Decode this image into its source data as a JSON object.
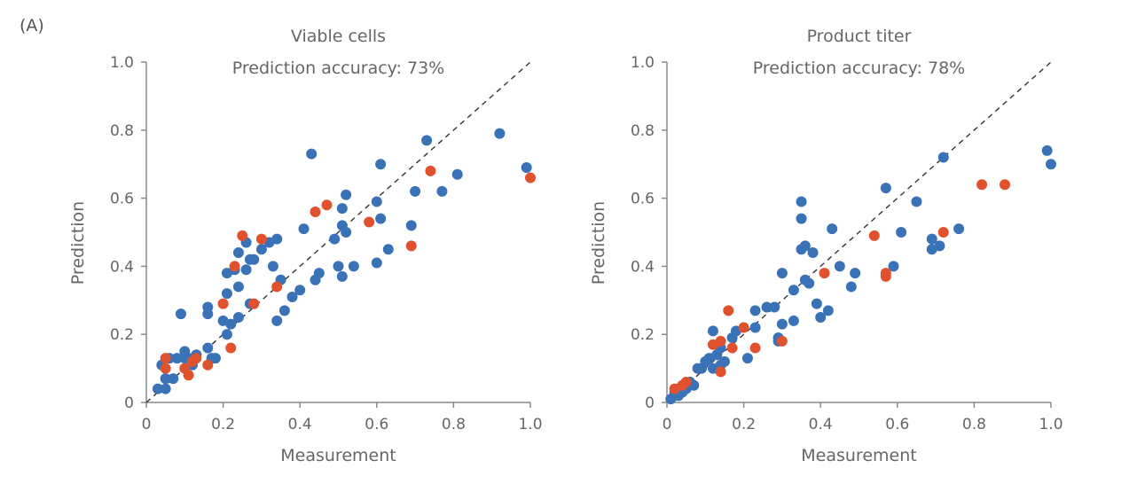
{
  "figure": {
    "panel_label": "(A)"
  },
  "colors": {
    "blue": "#3a72b8",
    "red": "#e0522d",
    "axis": "#888888",
    "text": "#666666"
  },
  "chart_data": [
    {
      "type": "scatter",
      "title": "Viable cells",
      "subtitle": "Prediction accuracy: 73%",
      "xlabel": "Measurement",
      "ylabel": "Prediction",
      "xlim": [
        0,
        1.0
      ],
      "ylim": [
        0,
        1.0
      ],
      "xticks": [
        "0",
        "0.2",
        "0.4",
        "0.6",
        "0.8",
        "1.0"
      ],
      "yticks": [
        "0",
        "0.2",
        "0.4",
        "0.6",
        "0.8",
        "1.0"
      ],
      "grid": false,
      "reference_line": "diagonal",
      "series": [
        {
          "color": "blue",
          "points": [
            [
              0.03,
              0.04
            ],
            [
              0.04,
              0.11
            ],
            [
              0.05,
              0.04
            ],
            [
              0.05,
              0.07
            ],
            [
              0.06,
              0.13
            ],
            [
              0.07,
              0.07
            ],
            [
              0.08,
              0.13
            ],
            [
              0.1,
              0.13
            ],
            [
              0.1,
              0.15
            ],
            [
              0.11,
              0.13
            ],
            [
              0.12,
              0.11
            ],
            [
              0.13,
              0.14
            ],
            [
              0.09,
              0.26
            ],
            [
              0.16,
              0.26
            ],
            [
              0.16,
              0.28
            ],
            [
              0.16,
              0.16
            ],
            [
              0.17,
              0.13
            ],
            [
              0.18,
              0.13
            ],
            [
              0.2,
              0.24
            ],
            [
              0.21,
              0.2
            ],
            [
              0.21,
              0.32
            ],
            [
              0.22,
              0.23
            ],
            [
              0.21,
              0.38
            ],
            [
              0.23,
              0.39
            ],
            [
              0.24,
              0.44
            ],
            [
              0.24,
              0.34
            ],
            [
              0.24,
              0.25
            ],
            [
              0.26,
              0.39
            ],
            [
              0.26,
              0.47
            ],
            [
              0.27,
              0.42
            ],
            [
              0.27,
              0.29
            ],
            [
              0.28,
              0.42
            ],
            [
              0.3,
              0.45
            ],
            [
              0.32,
              0.47
            ],
            [
              0.33,
              0.4
            ],
            [
              0.34,
              0.48
            ],
            [
              0.34,
              0.24
            ],
            [
              0.35,
              0.36
            ],
            [
              0.36,
              0.27
            ],
            [
              0.38,
              0.31
            ],
            [
              0.4,
              0.33
            ],
            [
              0.41,
              0.51
            ],
            [
              0.43,
              0.73
            ],
            [
              0.44,
              0.36
            ],
            [
              0.45,
              0.38
            ],
            [
              0.49,
              0.48
            ],
            [
              0.5,
              0.4
            ],
            [
              0.51,
              0.37
            ],
            [
              0.51,
              0.52
            ],
            [
              0.52,
              0.5
            ],
            [
              0.52,
              0.61
            ],
            [
              0.51,
              0.57
            ],
            [
              0.54,
              0.4
            ],
            [
              0.6,
              0.41
            ],
            [
              0.6,
              0.59
            ],
            [
              0.61,
              0.7
            ],
            [
              0.61,
              0.54
            ],
            [
              0.63,
              0.45
            ],
            [
              0.69,
              0.52
            ],
            [
              0.7,
              0.62
            ],
            [
              0.73,
              0.77
            ],
            [
              0.77,
              0.62
            ],
            [
              0.81,
              0.67
            ],
            [
              0.92,
              0.79
            ],
            [
              0.99,
              0.69
            ]
          ]
        },
        {
          "color": "red",
          "points": [
            [
              0.05,
              0.13
            ],
            [
              0.05,
              0.1
            ],
            [
              0.1,
              0.1
            ],
            [
              0.11,
              0.08
            ],
            [
              0.12,
              0.12
            ],
            [
              0.13,
              0.13
            ],
            [
              0.16,
              0.11
            ],
            [
              0.2,
              0.29
            ],
            [
              0.22,
              0.16
            ],
            [
              0.23,
              0.4
            ],
            [
              0.25,
              0.49
            ],
            [
              0.3,
              0.48
            ],
            [
              0.28,
              0.29
            ],
            [
              0.34,
              0.34
            ],
            [
              0.44,
              0.56
            ],
            [
              0.47,
              0.58
            ],
            [
              0.58,
              0.53
            ],
            [
              0.69,
              0.46
            ],
            [
              0.74,
              0.68
            ],
            [
              1.0,
              0.66
            ]
          ]
        }
      ]
    },
    {
      "type": "scatter",
      "title": "Product titer",
      "subtitle": "Prediction accuracy: 78%",
      "xlabel": "Measurement",
      "ylabel": "Prediction",
      "xlim": [
        0,
        1.0
      ],
      "ylim": [
        0,
        1.0
      ],
      "xticks": [
        "0",
        "0.2",
        "0.4",
        "0.6",
        "0.8",
        "1.0"
      ],
      "yticks": [
        "0",
        "0.2",
        "0.4",
        "0.6",
        "0.8",
        "1.0"
      ],
      "grid": false,
      "reference_line": "diagonal",
      "series": [
        {
          "color": "blue",
          "points": [
            [
              0.01,
              0.01
            ],
            [
              0.02,
              0.02
            ],
            [
              0.02,
              0.03
            ],
            [
              0.03,
              0.02
            ],
            [
              0.03,
              0.04
            ],
            [
              0.04,
              0.03
            ],
            [
              0.05,
              0.05
            ],
            [
              0.05,
              0.04
            ],
            [
              0.06,
              0.06
            ],
            [
              0.07,
              0.05
            ],
            [
              0.08,
              0.1
            ],
            [
              0.09,
              0.1
            ],
            [
              0.1,
              0.12
            ],
            [
              0.11,
              0.13
            ],
            [
              0.12,
              0.1
            ],
            [
              0.12,
              0.21
            ],
            [
              0.13,
              0.14
            ],
            [
              0.14,
              0.16
            ],
            [
              0.14,
              0.11
            ],
            [
              0.15,
              0.12
            ],
            [
              0.17,
              0.19
            ],
            [
              0.18,
              0.21
            ],
            [
              0.21,
              0.13
            ],
            [
              0.23,
              0.22
            ],
            [
              0.23,
              0.27
            ],
            [
              0.26,
              0.28
            ],
            [
              0.28,
              0.28
            ],
            [
              0.29,
              0.19
            ],
            [
              0.29,
              0.18
            ],
            [
              0.3,
              0.38
            ],
            [
              0.3,
              0.23
            ],
            [
              0.33,
              0.24
            ],
            [
              0.33,
              0.33
            ],
            [
              0.35,
              0.54
            ],
            [
              0.35,
              0.59
            ],
            [
              0.35,
              0.45
            ],
            [
              0.36,
              0.46
            ],
            [
              0.36,
              0.36
            ],
            [
              0.37,
              0.35
            ],
            [
              0.38,
              0.44
            ],
            [
              0.39,
              0.29
            ],
            [
              0.4,
              0.25
            ],
            [
              0.42,
              0.27
            ],
            [
              0.43,
              0.51
            ],
            [
              0.45,
              0.4
            ],
            [
              0.48,
              0.34
            ],
            [
              0.49,
              0.38
            ],
            [
              0.57,
              0.63
            ],
            [
              0.59,
              0.4
            ],
            [
              0.61,
              0.5
            ],
            [
              0.65,
              0.59
            ],
            [
              0.69,
              0.45
            ],
            [
              0.69,
              0.48
            ],
            [
              0.71,
              0.46
            ],
            [
              0.72,
              0.72
            ],
            [
              0.76,
              0.51
            ],
            [
              0.99,
              0.74
            ],
            [
              1.0,
              0.7
            ]
          ]
        },
        {
          "color": "red",
          "points": [
            [
              0.02,
              0.04
            ],
            [
              0.04,
              0.05
            ],
            [
              0.05,
              0.06
            ],
            [
              0.12,
              0.17
            ],
            [
              0.14,
              0.09
            ],
            [
              0.14,
              0.18
            ],
            [
              0.16,
              0.27
            ],
            [
              0.17,
              0.16
            ],
            [
              0.2,
              0.22
            ],
            [
              0.23,
              0.16
            ],
            [
              0.3,
              0.18
            ],
            [
              0.41,
              0.38
            ],
            [
              0.54,
              0.49
            ],
            [
              0.57,
              0.37
            ],
            [
              0.57,
              0.38
            ],
            [
              0.72,
              0.5
            ],
            [
              0.82,
              0.64
            ],
            [
              0.88,
              0.64
            ]
          ]
        }
      ]
    }
  ]
}
